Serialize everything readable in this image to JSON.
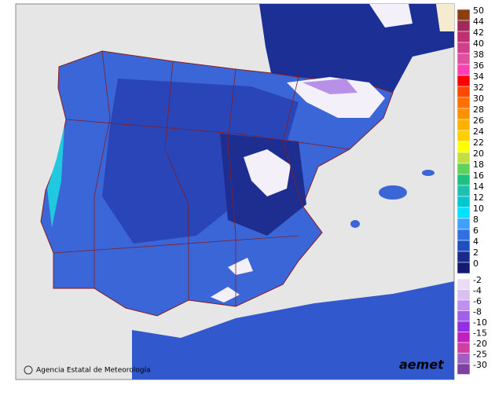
{
  "legend": {
    "upper": [
      {
        "label": 50,
        "color": "#8b3e12"
      },
      {
        "label": 44,
        "color": "#a02a5a"
      },
      {
        "label": 42,
        "color": "#c03070"
      },
      {
        "label": 40,
        "color": "#d0408a"
      },
      {
        "label": 38,
        "color": "#e050a0"
      },
      {
        "label": 36,
        "color": "#ff40b0"
      },
      {
        "label": 34,
        "color": "#ff0000"
      },
      {
        "label": 32,
        "color": "#ff4800"
      },
      {
        "label": 30,
        "color": "#ff7000"
      },
      {
        "label": 28,
        "color": "#ff9000"
      },
      {
        "label": 26,
        "color": "#ffb000"
      },
      {
        "label": 24,
        "color": "#ffd000"
      },
      {
        "label": 22,
        "color": "#ffff00"
      },
      {
        "label": 20,
        "color": "#c0e040"
      },
      {
        "label": 18,
        "color": "#60d060"
      },
      {
        "label": 16,
        "color": "#20c080"
      },
      {
        "label": 14,
        "color": "#20c0b0"
      },
      {
        "label": 12,
        "color": "#00c8d0"
      },
      {
        "label": 10,
        "color": "#00e0ff"
      },
      {
        "label": 8,
        "color": "#40a0ff"
      },
      {
        "label": 6,
        "color": "#3070e0"
      },
      {
        "label": 4,
        "color": "#2050c0"
      },
      {
        "label": 2,
        "color": "#1a2a8a"
      },
      {
        "label": 0,
        "color": "#141a6e"
      }
    ],
    "lower": [
      {
        "label": -2,
        "color": "#eadcf2"
      },
      {
        "label": -4,
        "color": "#d8c0f0"
      },
      {
        "label": -6,
        "color": "#c090f0"
      },
      {
        "label": -8,
        "color": "#a060e8"
      },
      {
        "label": -10,
        "color": "#9030e0"
      },
      {
        "label": -15,
        "color": "#c020c0"
      },
      {
        "label": -20,
        "color": "#d040a0"
      },
      {
        "label": -25,
        "color": "#a060c0"
      },
      {
        "label": -30,
        "color": "#8040a0"
      }
    ]
  },
  "credit": "Agencia Estatal de Meteorología",
  "logo": "aemet"
}
